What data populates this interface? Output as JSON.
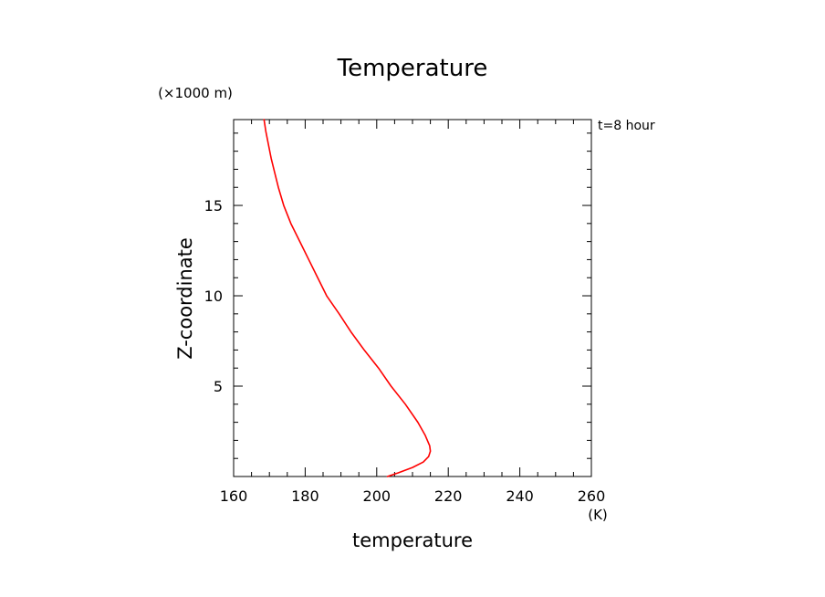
{
  "chart_data": {
    "type": "line",
    "title": "Temperature",
    "xlabel": "temperature",
    "ylabel": "Z-coordinate",
    "x_unit": "(K)",
    "y_unit": "(×1000 m)",
    "annotation": "t=8 hour",
    "xlim": [
      160,
      260
    ],
    "ylim": [
      0,
      19.75
    ],
    "x_major_ticks": [
      160,
      180,
      200,
      220,
      240,
      260
    ],
    "x_tick_labels": [
      "160",
      "180",
      "200",
      "220",
      "240",
      "260"
    ],
    "x_minor_step": 5,
    "y_major_ticks": [
      5,
      10,
      15
    ],
    "y_tick_labels": [
      "5",
      "10",
      "15"
    ],
    "y_minor_step": 1,
    "line_color": "#ff0000",
    "axis_color": "#000000",
    "series": [
      {
        "name": "temperature",
        "x": [
          203.0,
          206.0,
          210.0,
          213.0,
          214.5,
          215.0,
          214.8,
          213.5,
          211.5,
          208.0,
          204.0,
          200.5,
          196.5,
          192.8,
          189.5,
          186.0,
          183.5,
          181.0,
          178.5,
          176.0,
          174.0,
          172.5,
          171.5,
          170.5,
          169.7,
          169.0,
          168.5
        ],
        "y": [
          0.0,
          0.2,
          0.5,
          0.8,
          1.1,
          1.4,
          1.7,
          2.3,
          3.0,
          4.0,
          5.0,
          6.0,
          7.0,
          8.0,
          9.0,
          10.0,
          11.0,
          12.0,
          13.0,
          14.0,
          15.0,
          16.0,
          16.8,
          17.6,
          18.4,
          19.1,
          19.75
        ]
      }
    ]
  }
}
